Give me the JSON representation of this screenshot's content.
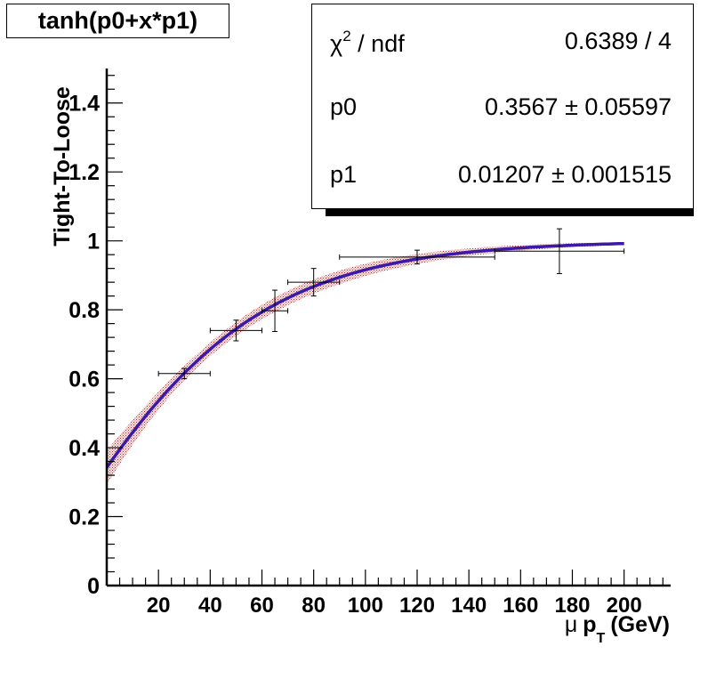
{
  "title": "tanh(p0+x*p1)",
  "stats": {
    "chi2_label": "/ ndf",
    "chi2_symbol": "χ",
    "chi2_sup": "2",
    "chi2_value": "0.6389 / 4",
    "p0_label": "p0",
    "p0_value": "0.3567 ± 0.05597",
    "p1_label": "p1",
    "p1_value": "0.01207 ± 0.001515"
  },
  "chart_data": {
    "type": "scatter",
    "title": "tanh(p0+x*p1)",
    "xlabel_mu": "μ",
    "xlabel_p": "p",
    "xlabel_sub": "T",
    "xlabel_unit": "(GeV)",
    "ylabel": "Tight-To-Loose",
    "xlim": [
      0,
      218
    ],
    "ylim": [
      0,
      1.5
    ],
    "x_ticks": [
      20,
      40,
      60,
      80,
      100,
      120,
      140,
      160,
      180,
      200
    ],
    "y_ticks": [
      0,
      0.2,
      0.4,
      0.6,
      0.8,
      1,
      1.2,
      1.4
    ],
    "y_tick_labels": [
      "0",
      "0.2",
      "0.4",
      "0.6",
      "0.8",
      "1",
      "1.2",
      "1.4"
    ],
    "points": [
      {
        "x": 30,
        "xerr_lo": 10,
        "xerr_hi": 10,
        "y": 0.615,
        "yerr": 0.015
      },
      {
        "x": 50,
        "xerr_lo": 10,
        "xerr_hi": 10,
        "y": 0.74,
        "yerr": 0.03
      },
      {
        "x": 65,
        "xerr_lo": 5,
        "xerr_hi": 5,
        "y": 0.797,
        "yerr": 0.06
      },
      {
        "x": 80,
        "xerr_lo": 10,
        "xerr_hi": 10,
        "y": 0.88,
        "yerr": 0.04
      },
      {
        "x": 120,
        "xerr_lo": 30,
        "xerr_hi": 30,
        "y": 0.953,
        "yerr": 0.02
      },
      {
        "x": 175,
        "xerr_lo": 25,
        "xerr_hi": 25,
        "y": 0.97,
        "yerr": 0.065
      }
    ],
    "fit": {
      "p0": 0.3567,
      "p1": 0.01207,
      "p0_err": 0.05597,
      "p1_err": 0.001515,
      "x_range": [
        0,
        200
      ]
    },
    "colors": {
      "fit": "#3a1aa6",
      "band": "#b83030",
      "axis": "#000000"
    }
  }
}
